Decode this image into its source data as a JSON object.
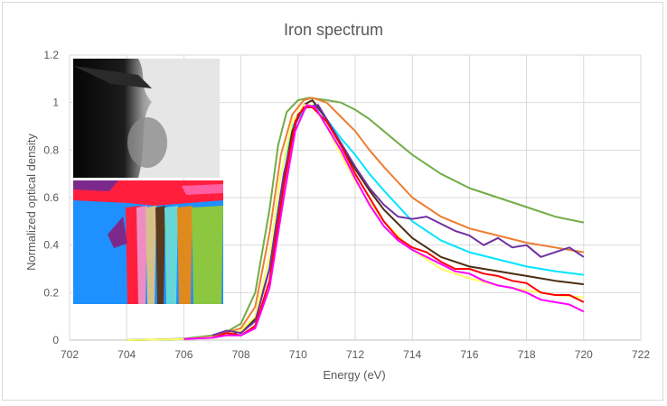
{
  "chart_data": {
    "type": "line",
    "title": "Iron spectrum",
    "xlabel": "Energy (eV)",
    "ylabel": "Normalized optical density",
    "xlim": [
      702,
      722
    ],
    "ylim": [
      0,
      1.2
    ],
    "x_ticks": [
      "702",
      "704",
      "706",
      "708",
      "710",
      "712",
      "714",
      "716",
      "718",
      "720",
      "722"
    ],
    "y_ticks": [
      "0",
      "0.2",
      "0.4",
      "0.6",
      "0.8",
      "1",
      "1.2"
    ],
    "grid": true,
    "legend": "none",
    "series": [
      {
        "color": "#70ad47",
        "points": [
          [
            704,
            0
          ],
          [
            705,
            0.002
          ],
          [
            706,
            0.006
          ],
          [
            707,
            0.02
          ],
          [
            707.5,
            0.035
          ],
          [
            708,
            0.07
          ],
          [
            708.5,
            0.2
          ],
          [
            709,
            0.55
          ],
          [
            709.3,
            0.82
          ],
          [
            709.6,
            0.96
          ],
          [
            710,
            1.01
          ],
          [
            710.4,
            1.02
          ],
          [
            711,
            1.01
          ],
          [
            711.5,
            1.0
          ],
          [
            712,
            0.97
          ],
          [
            712.5,
            0.93
          ],
          [
            713,
            0.88
          ],
          [
            714,
            0.78
          ],
          [
            715,
            0.7
          ],
          [
            716,
            0.64
          ],
          [
            717,
            0.6
          ],
          [
            718,
            0.56
          ],
          [
            719,
            0.52
          ],
          [
            720,
            0.495
          ]
        ]
      },
      {
        "color": "#ed7d31",
        "points": [
          [
            704,
            0
          ],
          [
            706,
            0.005
          ],
          [
            707,
            0.015
          ],
          [
            708,
            0.05
          ],
          [
            708.5,
            0.14
          ],
          [
            709,
            0.45
          ],
          [
            709.4,
            0.78
          ],
          [
            709.8,
            0.95
          ],
          [
            710.2,
            1.01
          ],
          [
            710.5,
            1.02
          ],
          [
            711,
            1.0
          ],
          [
            711.5,
            0.94
          ],
          [
            712,
            0.88
          ],
          [
            712.5,
            0.8
          ],
          [
            713,
            0.73
          ],
          [
            714,
            0.6
          ],
          [
            715,
            0.52
          ],
          [
            716,
            0.47
          ],
          [
            717,
            0.44
          ],
          [
            718,
            0.41
          ],
          [
            719,
            0.39
          ],
          [
            720,
            0.37
          ]
        ]
      },
      {
        "color": "#00e5ff",
        "points": [
          [
            704,
            0
          ],
          [
            706,
            0.004
          ],
          [
            707,
            0.012
          ],
          [
            708,
            0.04
          ],
          [
            708.5,
            0.1
          ],
          [
            709,
            0.35
          ],
          [
            709.4,
            0.7
          ],
          [
            709.8,
            0.9
          ],
          [
            710.3,
            0.98
          ],
          [
            710.6,
            0.99
          ],
          [
            711,
            0.93
          ],
          [
            711.5,
            0.85
          ],
          [
            712,
            0.78
          ],
          [
            712.5,
            0.7
          ],
          [
            713,
            0.63
          ],
          [
            714,
            0.5
          ],
          [
            715,
            0.42
          ],
          [
            716,
            0.37
          ],
          [
            717,
            0.34
          ],
          [
            718,
            0.31
          ],
          [
            719,
            0.29
          ],
          [
            720,
            0.275
          ]
        ]
      },
      {
        "color": "#4b2e10",
        "points": [
          [
            704,
            0
          ],
          [
            706,
            0.004
          ],
          [
            707,
            0.012
          ],
          [
            708,
            0.035
          ],
          [
            708.5,
            0.09
          ],
          [
            709,
            0.3
          ],
          [
            709.4,
            0.62
          ],
          [
            709.8,
            0.88
          ],
          [
            710.2,
            0.99
          ],
          [
            710.5,
            1.01
          ],
          [
            711,
            0.93
          ],
          [
            711.5,
            0.82
          ],
          [
            712,
            0.72
          ],
          [
            712.5,
            0.63
          ],
          [
            713,
            0.55
          ],
          [
            714,
            0.43
          ],
          [
            715,
            0.35
          ],
          [
            716,
            0.31
          ],
          [
            717,
            0.29
          ],
          [
            718,
            0.27
          ],
          [
            719,
            0.25
          ],
          [
            720,
            0.235
          ]
        ]
      },
      {
        "color": "#ffff66",
        "points": [
          [
            704,
            0
          ],
          [
            706,
            0.004
          ],
          [
            707,
            0.012
          ],
          [
            708,
            0.04
          ],
          [
            708.5,
            0.1
          ],
          [
            709,
            0.35
          ],
          [
            709.4,
            0.7
          ],
          [
            709.8,
            0.92
          ],
          [
            710.2,
            0.99
          ],
          [
            710.5,
            0.99
          ],
          [
            711,
            0.9
          ],
          [
            711.5,
            0.78
          ],
          [
            712,
            0.67
          ],
          [
            712.5,
            0.58
          ],
          [
            713,
            0.5
          ],
          [
            714,
            0.38
          ],
          [
            715,
            0.3
          ],
          [
            716,
            0.26
          ],
          [
            717,
            0.23
          ],
          [
            718,
            0.21
          ],
          [
            719,
            0.19
          ],
          [
            720,
            0.18
          ]
        ]
      },
      {
        "color": "#7030a0",
        "points": [
          [
            707,
            0.02
          ],
          [
            707.5,
            0.04
          ],
          [
            708,
            0.03
          ],
          [
            708.5,
            0.08
          ],
          [
            709,
            0.3
          ],
          [
            709.5,
            0.7
          ],
          [
            710,
            0.95
          ],
          [
            710.3,
            0.98
          ],
          [
            710.7,
            0.99
          ],
          [
            711,
            0.93
          ],
          [
            711.5,
            0.83
          ],
          [
            712,
            0.73
          ],
          [
            712.5,
            0.64
          ],
          [
            713,
            0.57
          ],
          [
            713.5,
            0.52
          ],
          [
            714,
            0.51
          ],
          [
            714.5,
            0.52
          ],
          [
            715,
            0.49
          ],
          [
            715.5,
            0.46
          ],
          [
            716,
            0.44
          ],
          [
            716.5,
            0.4
          ],
          [
            717,
            0.43
          ],
          [
            717.5,
            0.39
          ],
          [
            718,
            0.4
          ],
          [
            718.5,
            0.35
          ],
          [
            719,
            0.37
          ],
          [
            719.5,
            0.39
          ],
          [
            720,
            0.35
          ]
        ]
      },
      {
        "color": "#ff0000",
        "points": [
          [
            707,
            0.01
          ],
          [
            707.5,
            0.03
          ],
          [
            708,
            0.02
          ],
          [
            708.5,
            0.06
          ],
          [
            709,
            0.25
          ],
          [
            709.5,
            0.65
          ],
          [
            709.9,
            0.92
          ],
          [
            710.2,
            0.98
          ],
          [
            710.5,
            0.98
          ],
          [
            711,
            0.92
          ],
          [
            711.5,
            0.82
          ],
          [
            712,
            0.7
          ],
          [
            712.5,
            0.6
          ],
          [
            713,
            0.5
          ],
          [
            713.5,
            0.43
          ],
          [
            714,
            0.39
          ],
          [
            714.5,
            0.37
          ],
          [
            715,
            0.33
          ],
          [
            715.5,
            0.3
          ],
          [
            716,
            0.3
          ],
          [
            716.5,
            0.28
          ],
          [
            717,
            0.27
          ],
          [
            717.5,
            0.25
          ],
          [
            718,
            0.24
          ],
          [
            718.5,
            0.2
          ],
          [
            719,
            0.19
          ],
          [
            719.5,
            0.19
          ],
          [
            720,
            0.16
          ]
        ]
      },
      {
        "color": "#ff00ff",
        "points": [
          [
            706,
            0.005
          ],
          [
            707,
            0.01
          ],
          [
            707.5,
            0.02
          ],
          [
            708,
            0.02
          ],
          [
            708.5,
            0.05
          ],
          [
            709,
            0.22
          ],
          [
            709.5,
            0.6
          ],
          [
            709.9,
            0.88
          ],
          [
            710.3,
            0.99
          ],
          [
            710.6,
            0.98
          ],
          [
            711,
            0.9
          ],
          [
            711.5,
            0.8
          ],
          [
            712,
            0.68
          ],
          [
            712.5,
            0.57
          ],
          [
            713,
            0.48
          ],
          [
            713.5,
            0.42
          ],
          [
            714,
            0.38
          ],
          [
            714.5,
            0.35
          ],
          [
            715,
            0.32
          ],
          [
            715.5,
            0.29
          ],
          [
            716,
            0.28
          ],
          [
            716.5,
            0.25
          ],
          [
            717,
            0.23
          ],
          [
            717.5,
            0.22
          ],
          [
            718,
            0.2
          ],
          [
            718.5,
            0.17
          ],
          [
            719,
            0.16
          ],
          [
            719.5,
            0.15
          ],
          [
            720,
            0.12
          ]
        ]
      }
    ]
  },
  "inset_top": {
    "description": "grayscale intensity map"
  },
  "inset_bottom": {
    "colors": [
      "#1e90ff",
      "#ff1f3d",
      "#7b2a8c",
      "#f08cc4",
      "#d6c08a",
      "#5a3a1e",
      "#66d6d6",
      "#e08a1e",
      "#8dc63f",
      "#ff5fa2"
    ]
  }
}
